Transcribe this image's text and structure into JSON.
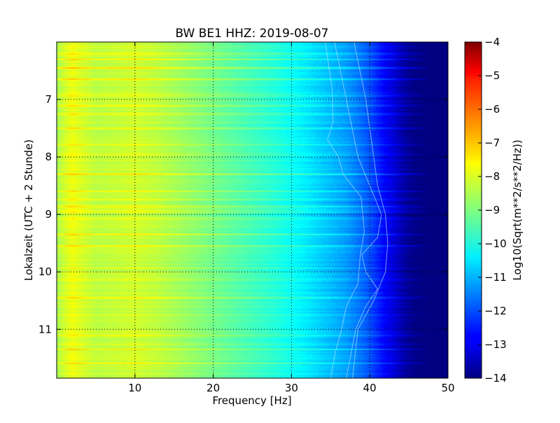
{
  "chart_data": {
    "type": "heatmap",
    "title": "BW BE1 HHZ: 2019-08-07",
    "xlabel": "Frequency [Hz]",
    "ylabel": "Lokalzeit (UTC + 2 Stunde)",
    "xlim": [
      0,
      50
    ],
    "ylim": [
      6.0,
      11.85
    ],
    "y_inverted": true,
    "x_ticks": [
      10,
      20,
      30,
      40,
      50
    ],
    "x_tick_labels": [
      "10",
      "20",
      "30",
      "40",
      "50"
    ],
    "y_ticks": [
      7,
      8,
      9,
      10,
      11
    ],
    "y_tick_labels": [
      "7",
      "8",
      "9",
      "10",
      "11"
    ],
    "grid": true,
    "colormap": "jet",
    "colorbar": {
      "label": "Log10(Sqrt(m**2/s**2/Hz))",
      "range": [
        -14,
        -4
      ],
      "ticks": [
        -14,
        -13,
        -12,
        -11,
        -10,
        -9,
        -8,
        -7,
        -6,
        -5,
        -4
      ],
      "tick_labels": [
        "−14",
        "−13",
        "−12",
        "−11",
        "−10",
        "−9",
        "−8",
        "−7",
        "−6",
        "−5",
        "−4"
      ]
    },
    "spectrum_profile": {
      "frequency_hz": [
        0,
        1,
        2,
        3,
        5,
        8,
        10,
        13,
        16,
        20,
        24,
        28,
        31,
        33,
        35,
        37,
        39,
        40,
        41,
        42,
        43,
        44,
        45,
        46,
        50
      ],
      "log10_amplitude": [
        -8.6,
        -8.2,
        -7.9,
        -8.1,
        -8.4,
        -8.3,
        -8.2,
        -8.4,
        -8.7,
        -9.1,
        -9.5,
        -9.9,
        -10.3,
        -10.6,
        -10.9,
        -11.2,
        -11.7,
        -12.0,
        -12.4,
        -12.8,
        -13.1,
        -13.5,
        -13.8,
        -14.0,
        -14.0
      ]
    },
    "bright_bands_hours": [
      6.2,
      6.3,
      6.45,
      6.65,
      6.93,
      7.1,
      7.25,
      7.5,
      7.8,
      7.95,
      8.3,
      8.6,
      8.75,
      8.87,
      8.95,
      9.07,
      9.35,
      9.55,
      9.93,
      10.12,
      10.45,
      10.75,
      11.1,
      11.35,
      11.6
    ],
    "spectral_lines": [
      {
        "hours": [
          6.0,
          6.8,
          7.4,
          7.7,
          8.0,
          8.3,
          8.7,
          9.3,
          9.7,
          10.2,
          10.6,
          11.0,
          11.4,
          11.85
        ],
        "frequency_hz": [
          34.3,
          35.2,
          35.3,
          34.6,
          36.0,
          36.6,
          38.9,
          39.3,
          38.8,
          38.5,
          37.0,
          36.4,
          35.6,
          35.0
        ]
      },
      {
        "hours": [
          6.0,
          7.0,
          8.0,
          8.5,
          9.0,
          9.4,
          9.7,
          10.0,
          10.3,
          10.6,
          11.0,
          11.5,
          11.85
        ],
        "frequency_hz": [
          35.5,
          37.0,
          38.5,
          40.0,
          41.5,
          41.0,
          39.0,
          39.5,
          41.0,
          39.5,
          38.2,
          37.5,
          37.0
        ]
      },
      {
        "hours": [
          6.0,
          7.0,
          8.0,
          8.5,
          9.0,
          9.5,
          10.0,
          10.5,
          11.0,
          11.85
        ],
        "frequency_hz": [
          38.0,
          39.5,
          40.5,
          41.0,
          42.0,
          42.3,
          42.0,
          40.5,
          38.5,
          37.8
        ]
      }
    ]
  }
}
